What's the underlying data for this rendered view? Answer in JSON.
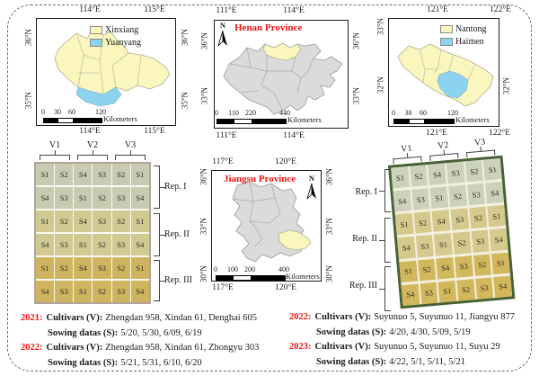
{
  "colors": {
    "pale_yellow": "#FAF6BD",
    "light_blue": "#8CD3F0",
    "province_gray": "#DBDBDB",
    "boundary_gray": "#A9A9A9",
    "red_label": "#F2130E",
    "left_rep1": "#C7CBB1",
    "left_rep2": "#D1C992",
    "left_rep3": "#CEB45E",
    "right_rep1": "#CCD2BA",
    "right_rep2": "#D5C98C",
    "right_rep3": "#D2B85D",
    "field_border_green": "#476137"
  },
  "maps": {
    "xinxiang": {
      "lon_top": [
        "114°E",
        "115°E"
      ],
      "lon_bottom": [
        "114°E",
        "115°E"
      ],
      "lat_left": [
        "36°N",
        "35°N"
      ],
      "lat_right": [
        "36°N",
        "35°N"
      ],
      "legend": [
        {
          "label": "Xinxiang",
          "color": "#FAF6BD"
        },
        {
          "label": "Yuanyang",
          "color": "#8CD3F0"
        }
      ],
      "scale": {
        "ticks": [
          "0",
          "30",
          "60",
          "120"
        ],
        "unit": "Kilometers"
      }
    },
    "henan": {
      "title": "Henan Province",
      "north_label": "N",
      "lon_top": [
        "111°E",
        "114°E"
      ],
      "lon_bottom": [
        "111°E",
        "114°E"
      ],
      "lat_left": [
        "36°N",
        "33°N"
      ],
      "lat_right": [
        "36°N",
        "33°N"
      ],
      "scale": {
        "ticks": [
          "0",
          "110",
          "220",
          "440"
        ],
        "unit": "Kilometers"
      }
    },
    "nantong": {
      "lon_top": [
        "121°E",
        "122°E"
      ],
      "lon_bottom": [
        "121°E",
        "122°E"
      ],
      "lat_left": [
        "33°N",
        "32°N"
      ],
      "lat_right": [
        "32°N"
      ],
      "legend": [
        {
          "label": "Nantong",
          "color": "#FAF6BD"
        },
        {
          "label": "Haimen",
          "color": "#8CD3F0"
        }
      ],
      "scale": {
        "ticks": [
          "0",
          "30",
          "60",
          "120"
        ],
        "unit": "Kilometers"
      }
    },
    "jiangsu": {
      "title": "Jiangsu Province",
      "north_label": "N",
      "lon_top": [
        "117°E",
        "120°E"
      ],
      "lon_bottom": [
        "117°E",
        "120°E"
      ],
      "lat_left": [
        "36°N",
        "33°N",
        "30°N"
      ],
      "lat_right": [
        "36°N",
        "33°N",
        "30°N"
      ],
      "scale": {
        "ticks": [
          "0",
          "100",
          "200",
          "400"
        ],
        "unit": "Kilometers"
      }
    }
  },
  "plots": {
    "left": {
      "varieties": [
        "V1",
        "V2",
        "V3"
      ],
      "reps": [
        "Rep. I",
        "Rep. II",
        "Rep. III"
      ],
      "rows": [
        [
          "S1",
          "S2",
          "S4",
          "S3",
          "S2",
          "S1"
        ],
        [
          "S4",
          "S3",
          "S1",
          "S2",
          "S3",
          "S4"
        ],
        [
          "S1",
          "S2",
          "S4",
          "S3",
          "S2",
          "S1"
        ],
        [
          "S4",
          "S3",
          "S1",
          "S2",
          "S3",
          "S4"
        ],
        [
          "S1",
          "S2",
          "S4",
          "S3",
          "S2",
          "S1"
        ],
        [
          "S4",
          "S3",
          "S1",
          "S2",
          "S3",
          "S4"
        ]
      ]
    },
    "right": {
      "varieties": [
        "V1",
        "V2",
        "V3"
      ],
      "reps": [
        "Rep. I",
        "Rep. II",
        "Rep. III"
      ],
      "rows": [
        [
          "S1",
          "S2",
          "S4",
          "S3",
          "S2",
          "S1"
        ],
        [
          "S4",
          "S3",
          "S1",
          "S2",
          "S3",
          "S4"
        ],
        [
          "S1",
          "S2",
          "S4",
          "S3",
          "S2",
          "S1"
        ],
        [
          "S4",
          "S3",
          "S1",
          "S2",
          "S3",
          "S4"
        ],
        [
          "S1",
          "S2",
          "S4",
          "S3",
          "S2",
          "S1"
        ],
        [
          "S4",
          "S3",
          "S1",
          "S2",
          "S3",
          "S4"
        ]
      ]
    }
  },
  "notes": {
    "left": [
      {
        "year": "2021:",
        "cultivars_label": "Cultivars (V):",
        "cultivars": "Zhengdan 958, Xindan 61, Denghai 605",
        "sowing_label": "Sowing datas (S):",
        "sowing": "5/20, 5/30, 6/09, 6/19"
      },
      {
        "year": "2022:",
        "cultivars_label": "Cultivars (V):",
        "cultivars": "Zhengdan 958, Xindan 61, Zhongyu 303",
        "sowing_label": "Sowing datas (S):",
        "sowing": "5/21, 5/31, 6/10, 6/20"
      }
    ],
    "right": [
      {
        "year": "2022:",
        "cultivars_label": "Cultivars (V):",
        "cultivars": "Suyunuo 5, Suyunuo 11, Jiangyu 877",
        "sowing_label": "Sowing datas (S):",
        "sowing": "4/20, 4/30, 5/09, 5/19"
      },
      {
        "year": "2023:",
        "cultivars_label": "Cultivars (V):",
        "cultivars": "Suyunuo 5, Suyunuo 11, Suyu 29",
        "sowing_label": "Sowing datas (S):",
        "sowing": "4/22, 5/1, 5/11, 5/21"
      }
    ]
  }
}
